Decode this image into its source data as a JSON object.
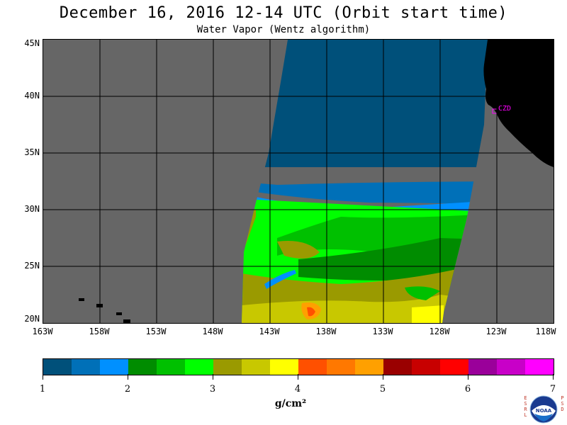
{
  "header": {
    "title": "December 16, 2016  12-14 UTC  (Orbit start time)",
    "subtitle": "Water Vapor (Wentz algorithm)"
  },
  "map": {
    "background_color": "#666666",
    "land_color": "#000000",
    "lat_labels": [
      "45N",
      "40N",
      "35N",
      "30N",
      "25N",
      "20N"
    ],
    "lon_labels": [
      "163W",
      "158W",
      "153W",
      "148W",
      "143W",
      "138W",
      "133W",
      "128W",
      "123W",
      "118W"
    ],
    "station": {
      "label": "CZD",
      "color": "#ff00ff"
    }
  },
  "colorbar": {
    "colors": [
      "#00507a",
      "#0070b8",
      "#0090ff",
      "#008c00",
      "#00c000",
      "#00ff00",
      "#9a9a00",
      "#c8c800",
      "#ffff00",
      "#ff5000",
      "#ff7800",
      "#ffa000",
      "#9a0000",
      "#c80000",
      "#ff0000",
      "#9a009a",
      "#c800c8",
      "#ff00ff"
    ],
    "tick_labels": [
      "1",
      "2",
      "3",
      "4",
      "5",
      "6",
      "7"
    ],
    "units": "g/cm²"
  },
  "logo": {
    "name": "NOAA",
    "left_letters": [
      "E",
      "S",
      "R",
      "L"
    ],
    "right_letters": [
      "P",
      "S",
      "D"
    ]
  }
}
